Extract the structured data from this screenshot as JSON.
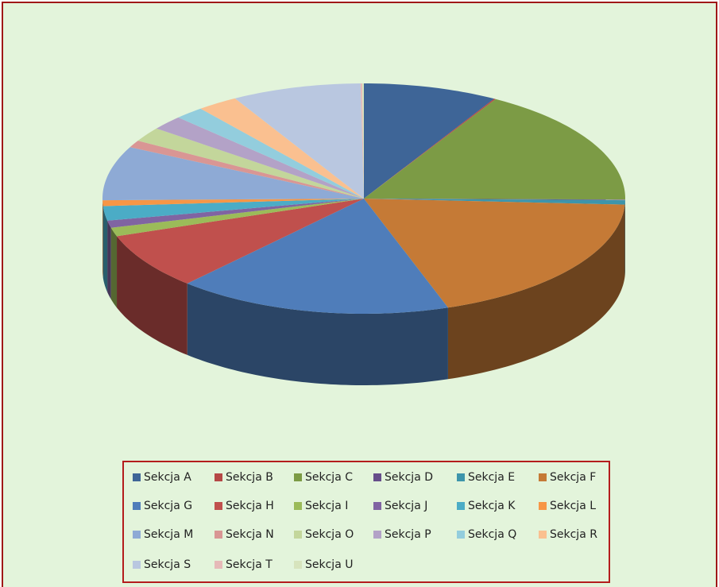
{
  "chart_data": {
    "type": "pie",
    "three_d": true,
    "legend": "bottom",
    "categories": [
      "Sekcja A",
      "Sekcja B",
      "Sekcja C",
      "Sekcja D",
      "Sekcja E",
      "Sekcja F",
      "Sekcja G",
      "Sekcja H",
      "Sekcja I",
      "Sekcja J",
      "Sekcja K",
      "Sekcja L",
      "Sekcja M",
      "Sekcja N",
      "Sekcja O",
      "Sekcja P",
      "Sekcja Q",
      "Sekcja R",
      "Sekcja S",
      "Sekcja T",
      "Sekcja U"
    ],
    "values": [
      8.2,
      0.1,
      16.5,
      0.1,
      0.6,
      18.7,
      16.8,
      7.8,
      1.2,
      1.0,
      2.0,
      0.8,
      7.5,
      1.0,
      2.0,
      2.0,
      1.8,
      2.5,
      7.9,
      0.1,
      0.1
    ],
    "colors": [
      "#3E6597",
      "#B54846",
      "#7C9B45",
      "#664E8A",
      "#3D95AB",
      "#C57A36",
      "#4F7DBA",
      "#C0504D",
      "#9BBB59",
      "#8064A2",
      "#4BACC6",
      "#F79646",
      "#8EAAD5",
      "#D99694",
      "#C3D69B",
      "#B3A2C7",
      "#93CDDD",
      "#FAC090",
      "#B9C7E0",
      "#E6B9B8",
      "#D7E4BD"
    ]
  }
}
